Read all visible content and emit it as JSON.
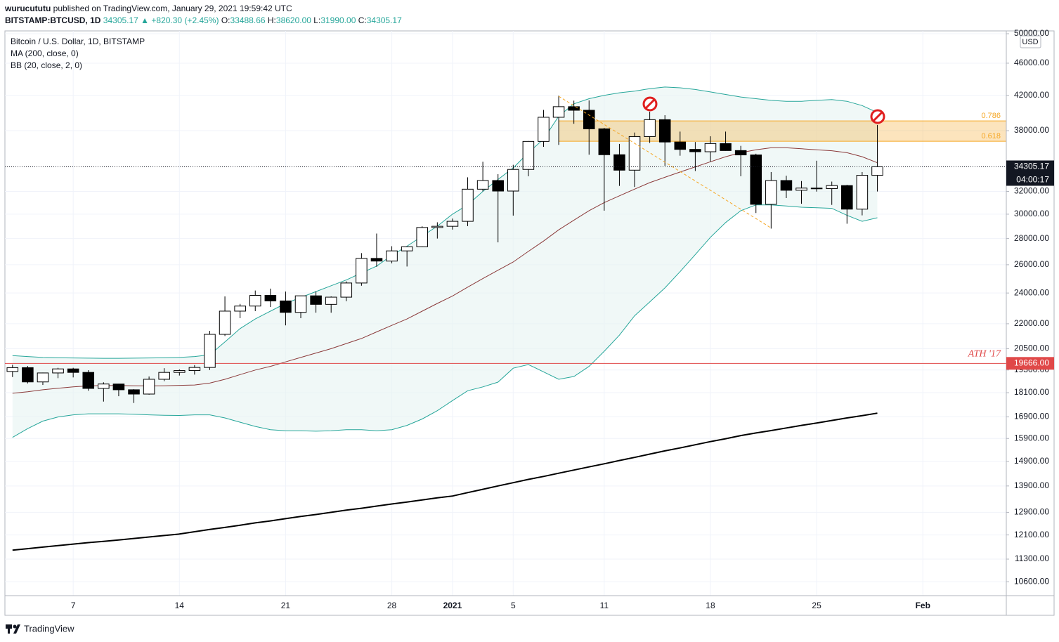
{
  "header": {
    "author": "wurucututu",
    "published": "published on TradingView.com, January 29, 2021 19:59:42 UTC",
    "symbol": "BITSTAMP:BTCUSD, 1D",
    "quote": "34305.17 ▲ +820.30 (+2.45%)",
    "ohlc": [
      {
        "key": "O:",
        "text": "33488.66"
      },
      {
        "key": "H:",
        "text": "38620.00"
      },
      {
        "key": "L:",
        "text": "31990.00"
      },
      {
        "key": "C:",
        "text": "34305.17"
      }
    ]
  },
  "footer": {
    "brand": "TradingView"
  },
  "chart_data": {
    "type": "candlestick",
    "title": "Bitcoin / U.S. Dollar, 1D, BITSTAMP",
    "currency": "USD",
    "log_scale": true,
    "grid": true,
    "categories": [
      null,
      null,
      null,
      null,
      "7",
      null,
      null,
      null,
      null,
      null,
      null,
      "14",
      null,
      null,
      null,
      null,
      null,
      null,
      "21",
      null,
      null,
      null,
      null,
      null,
      null,
      "28",
      null,
      null,
      null,
      "2021",
      null,
      null,
      null,
      "5",
      null,
      null,
      null,
      null,
      null,
      "11",
      null,
      null,
      null,
      null,
      null,
      null,
      "18",
      null,
      null,
      null,
      null,
      null,
      null,
      "25",
      null,
      null,
      null,
      null,
      null,
      null,
      "Feb",
      null,
      null,
      null,
      null,
      null
    ],
    "ylim": [
      10190,
      50400
    ],
    "yticks": [
      {
        "value": 50000,
        "label": "50000.00"
      },
      {
        "value": 46000,
        "label": "46000.00"
      },
      {
        "value": 42000,
        "label": "42000.00"
      },
      {
        "value": 38000,
        "label": "38000.00"
      },
      {
        "value": 32000,
        "label": "32000.00"
      },
      {
        "value": 30000,
        "label": "30000.00"
      },
      {
        "value": 28000,
        "label": "28000.00"
      },
      {
        "value": 26000,
        "label": "26000.00"
      },
      {
        "value": 24000,
        "label": "24000.00"
      },
      {
        "value": 22000,
        "label": "22000.00"
      },
      {
        "value": 20500,
        "label": "20500.00"
      },
      {
        "value": 19300,
        "label": "19300.00"
      },
      {
        "value": 18100,
        "label": "18100.00"
      },
      {
        "value": 16900,
        "label": "16900.00"
      },
      {
        "value": 15900,
        "label": "15900.00"
      },
      {
        "value": 14900,
        "label": "14900.00"
      },
      {
        "value": 13900,
        "label": "13900.00"
      },
      {
        "value": 12900,
        "label": "12900.00"
      },
      {
        "value": 12100,
        "label": "12100.00"
      },
      {
        "value": 11300,
        "label": "11300.00"
      },
      {
        "value": 10600,
        "label": "10600.00"
      }
    ],
    "candles": {
      "up_color": "#ffffff",
      "down_color": "#000000",
      "open": [
        19220,
        19430,
        18660,
        19140,
        19360,
        19170,
        18320,
        18550,
        18250,
        18030,
        18800,
        19170,
        19270,
        19440,
        21350,
        22800,
        23130,
        23840,
        23470,
        22720,
        23810,
        23240,
        23720,
        24690,
        26470,
        26270,
        27040,
        27360,
        28890,
        28990,
        29400,
        32200,
        33000,
        32030,
        34050,
        36860,
        39470,
        40670,
        40260,
        38200,
        35500,
        33980,
        37370,
        39200,
        36800,
        36040,
        35800,
        36640,
        35920,
        35480,
        30850,
        33000,
        32100,
        32300,
        32250,
        32530,
        30430,
        33488.66,
        null,
        null,
        null,
        null,
        null,
        null,
        null,
        null
      ],
      "high": [
        19590,
        19520,
        19160,
        19420,
        19420,
        19290,
        18640,
        18560,
        18280,
        18950,
        19400,
        19330,
        19570,
        21560,
        23770,
        23270,
        24170,
        24300,
        24100,
        23800,
        24100,
        23770,
        24800,
        26870,
        28400,
        27400,
        27380,
        28990,
        29320,
        29630,
        33300,
        34800,
        33600,
        34500,
        36900,
        40300,
        41950,
        41370,
        41400,
        38300,
        36600,
        37800,
        40100,
        39700,
        37900,
        36800,
        37400,
        37900,
        36400,
        35600,
        33800,
        33450,
        32950,
        34900,
        32900,
        32600,
        33800,
        38620,
        null,
        null,
        null,
        null,
        null,
        null,
        null,
        null
      ],
      "low": [
        18920,
        18580,
        18500,
        18860,
        18900,
        18200,
        17650,
        17920,
        17580,
        18000,
        18700,
        19000,
        19050,
        19300,
        21250,
        22350,
        22800,
        23070,
        21900,
        22350,
        22700,
        22700,
        23450,
        24500,
        25850,
        26100,
        25870,
        27330,
        28000,
        28720,
        29000,
        32000,
        27700,
        29880,
        33400,
        36300,
        36500,
        38750,
        35500,
        30300,
        32500,
        32400,
        36700,
        34400,
        35400,
        33900,
        34800,
        35900,
        33400,
        30100,
        28800,
        31400,
        30900,
        31980,
        30800,
        29200,
        29900,
        31990,
        null,
        null,
        null,
        null,
        null,
        null,
        null,
        null
      ],
      "close": [
        19430,
        18660,
        19140,
        19360,
        19170,
        18320,
        18550,
        18250,
        18030,
        18800,
        19170,
        19270,
        19440,
        21350,
        22800,
        23130,
        23840,
        23470,
        22720,
        23810,
        23240,
        23720,
        24690,
        26470,
        26270,
        27040,
        27360,
        28890,
        28990,
        29400,
        32200,
        33000,
        32030,
        34050,
        36860,
        39470,
        40670,
        40260,
        38200,
        35500,
        33980,
        37370,
        39200,
        36800,
        36040,
        35800,
        36640,
        35920,
        35480,
        30850,
        33000,
        32100,
        32300,
        32250,
        32530,
        30430,
        33488.66,
        34305.17,
        null,
        null,
        null,
        null,
        null,
        null,
        null,
        null
      ]
    },
    "series": [
      {
        "name": "MA (200, close, 0)",
        "color": "#000000",
        "values": [
          11590,
          11640,
          11690,
          11740,
          11790,
          11840,
          11880,
          11930,
          11980,
          12030,
          12080,
          12130,
          12210,
          12290,
          12360,
          12440,
          12520,
          12590,
          12670,
          12750,
          12820,
          12900,
          12980,
          13050,
          13130,
          13210,
          13280,
          13360,
          13440,
          13510,
          13640,
          13770,
          13900,
          14030,
          14160,
          14280,
          14410,
          14540,
          14670,
          14800,
          14940,
          15070,
          15210,
          15350,
          15480,
          15620,
          15760,
          15890,
          16030,
          16150,
          16260,
          16380,
          16500,
          16610,
          16730,
          16850,
          16960,
          17080,
          null,
          null,
          null,
          null,
          null,
          null,
          null,
          null
        ]
      },
      {
        "name": "BB (20, close, 2, 0)",
        "color": "#26a69a",
        "basis_color": "#8b3a3a",
        "fill": "#e6f4f2",
        "upper": [
          20100,
          20050,
          20000,
          19980,
          19970,
          19960,
          19950,
          19950,
          19960,
          19970,
          19980,
          20000,
          20050,
          20150,
          20900,
          21700,
          22300,
          22800,
          23300,
          23700,
          24100,
          24500,
          24900,
          25400,
          25900,
          26700,
          27400,
          28200,
          29000,
          30000,
          30800,
          32000,
          33100,
          34200,
          35700,
          37100,
          39600,
          41000,
          41600,
          42000,
          42300,
          42500,
          42800,
          43000,
          42900,
          42700,
          42400,
          42100,
          41800,
          41600,
          41400,
          41300,
          41300,
          41400,
          41500,
          41300,
          40800,
          40000,
          null,
          null,
          null,
          null,
          null,
          null,
          null,
          null
        ],
        "basis": [
          18070,
          18150,
          18250,
          18330,
          18400,
          18450,
          18470,
          18470,
          18460,
          18450,
          18460,
          18480,
          18500,
          18600,
          18800,
          19050,
          19300,
          19500,
          19750,
          20000,
          20250,
          20500,
          20800,
          21100,
          21500,
          21900,
          22300,
          22800,
          23300,
          23800,
          24400,
          25000,
          25600,
          26200,
          27000,
          27800,
          28700,
          29500,
          30300,
          31000,
          31600,
          32200,
          32800,
          33300,
          33800,
          34300,
          34800,
          35300,
          35700,
          36000,
          36200,
          36200,
          36100,
          36000,
          35900,
          35700,
          35300,
          34700,
          null,
          null,
          null,
          null,
          null,
          null,
          null,
          null
        ],
        "lower": [
          15950,
          16350,
          16700,
          16900,
          17000,
          17050,
          17050,
          17050,
          17030,
          17000,
          16980,
          16970,
          17000,
          17000,
          16850,
          16650,
          16450,
          16300,
          16250,
          16250,
          16230,
          16250,
          16300,
          16300,
          16250,
          16300,
          16500,
          16800,
          17200,
          17700,
          18200,
          18400,
          18650,
          19400,
          19600,
          19200,
          18800,
          18950,
          19500,
          20350,
          21300,
          22500,
          23400,
          24350,
          25500,
          26760,
          28100,
          29300,
          30300,
          30800,
          30800,
          30700,
          30600,
          30550,
          30500,
          29900,
          29400,
          29700,
          null,
          null,
          null,
          null,
          null,
          null,
          null,
          null
        ]
      }
    ],
    "ath": {
      "label": "ATH '17",
      "value": 19666,
      "price_label": "19666.00",
      "color": "#e04848"
    },
    "fib_zone": {
      "color": "#f5a623",
      "levels": [
        {
          "ratio": 0.618,
          "price": 36880
        },
        {
          "ratio": 0.786,
          "price": 39070
        }
      ]
    },
    "timer": "04:00:17"
  }
}
